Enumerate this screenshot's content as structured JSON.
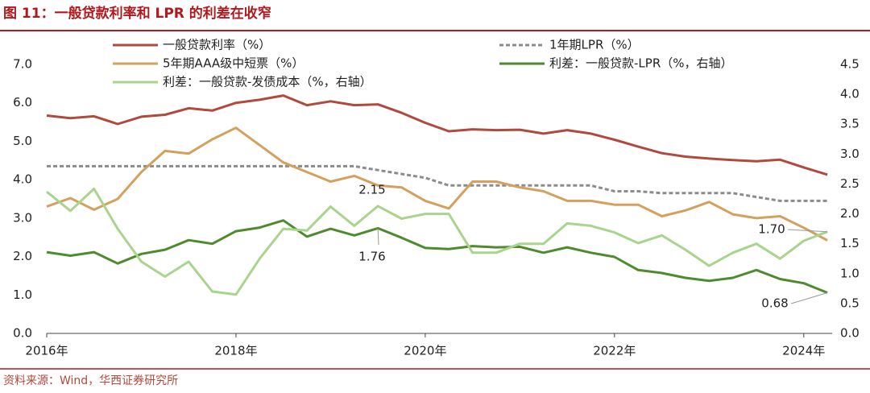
{
  "chart_data": {
    "type": "line",
    "title": "图 11：一般贷款利率和 LPR 的利差在收窄",
    "source": "资料来源：Wind，华西证券研究所",
    "x": [
      2016,
      2016.25,
      2016.5,
      2016.75,
      2017,
      2017.25,
      2017.5,
      2017.75,
      2018,
      2018.25,
      2018.5,
      2018.75,
      2019,
      2019.25,
      2019.5,
      2019.75,
      2020,
      2020.25,
      2020.5,
      2020.75,
      2021,
      2021.25,
      2021.5,
      2021.75,
      2022,
      2022.25,
      2022.5,
      2022.75,
      2023,
      2023.25,
      2023.5,
      2023.75,
      2024,
      2024.25
    ],
    "xlim": [
      2016,
      2024.3
    ],
    "xticks": [
      {
        "value": 2016,
        "label": "2016年"
      },
      {
        "value": 2018,
        "label": "2018年"
      },
      {
        "value": 2020,
        "label": "2020年"
      },
      {
        "value": 2022,
        "label": "2022年"
      },
      {
        "value": 2024,
        "label": "2024年"
      }
    ],
    "ylim": [
      0,
      7
    ],
    "yticks": [
      {
        "value": 0,
        "label": "0.0"
      },
      {
        "value": 1,
        "label": "1.0"
      },
      {
        "value": 2,
        "label": "2.0"
      },
      {
        "value": 3,
        "label": "3.0"
      },
      {
        "value": 4,
        "label": "4.0"
      },
      {
        "value": 5,
        "label": "5.0"
      },
      {
        "value": 6,
        "label": "6.0"
      },
      {
        "value": 7,
        "label": "7.0"
      }
    ],
    "y2lim": [
      0,
      4.5
    ],
    "y2ticks": [
      {
        "value": 0,
        "label": "0.0"
      },
      {
        "value": 0.5,
        "label": "0.5"
      },
      {
        "value": 1,
        "label": "1.0"
      },
      {
        "value": 1.5,
        "label": "1.5"
      },
      {
        "value": 2,
        "label": "2.0"
      },
      {
        "value": 2.5,
        "label": "2.5"
      },
      {
        "value": 3,
        "label": "3.0"
      },
      {
        "value": 3.5,
        "label": "3.5"
      },
      {
        "value": 4,
        "label": "4.0"
      },
      {
        "value": 4.5,
        "label": "4.5"
      }
    ],
    "series": [
      {
        "name": "一般贷款利率（%）",
        "color": "#b04a3c",
        "style": "solid",
        "values": [
          5.67,
          5.6,
          5.65,
          5.45,
          5.64,
          5.69,
          5.86,
          5.8,
          6.0,
          6.08,
          6.19,
          5.94,
          6.04,
          5.94,
          5.96,
          5.74,
          5.48,
          5.26,
          5.31,
          5.29,
          5.3,
          5.2,
          5.29,
          5.2,
          5.04,
          4.86,
          4.69,
          4.6,
          4.55,
          4.51,
          4.48,
          4.52,
          4.32,
          4.13
        ]
      },
      {
        "name": "1年期LPR（%）",
        "color": "#8c8c8c",
        "style": "dashed",
        "values": [
          4.35,
          4.35,
          4.35,
          4.35,
          4.35,
          4.35,
          4.35,
          4.35,
          4.35,
          4.35,
          4.35,
          4.35,
          4.35,
          4.35,
          4.25,
          4.15,
          4.05,
          3.85,
          3.85,
          3.85,
          3.85,
          3.85,
          3.85,
          3.85,
          3.7,
          3.7,
          3.65,
          3.65,
          3.65,
          3.65,
          3.55,
          3.45,
          3.45,
          3.45
        ]
      },
      {
        "name": "5年期AAA级中短票（%）",
        "color": "#d4a05e",
        "style": "solid",
        "values": [
          3.3,
          3.52,
          3.22,
          3.5,
          4.2,
          4.75,
          4.68,
          5.05,
          5.35,
          4.9,
          4.45,
          4.2,
          3.95,
          4.1,
          3.85,
          3.8,
          3.45,
          3.25,
          3.95,
          3.95,
          3.8,
          3.7,
          3.45,
          3.45,
          3.35,
          3.35,
          3.05,
          3.2,
          3.42,
          3.1,
          3.0,
          3.05,
          2.75,
          2.42
        ]
      },
      {
        "name": "利差：一般贷款-LPR（%，右轴）",
        "color": "#4e8a2e",
        "style": "solid",
        "axis": "y2",
        "values": [
          1.36,
          1.3,
          1.36,
          1.17,
          1.33,
          1.4,
          1.56,
          1.5,
          1.71,
          1.77,
          1.89,
          1.62,
          1.75,
          1.64,
          1.76,
          1.6,
          1.43,
          1.41,
          1.46,
          1.44,
          1.45,
          1.35,
          1.44,
          1.35,
          1.28,
          1.06,
          1.01,
          0.93,
          0.88,
          0.93,
          1.06,
          0.91,
          0.84,
          0.68
        ]
      },
      {
        "name": "利差：一般贷款-发债成本（%，右轴）",
        "color": "#a9d48e",
        "style": "solid",
        "axis": "y2",
        "values": [
          2.37,
          2.05,
          2.42,
          1.75,
          1.2,
          0.95,
          1.2,
          0.7,
          0.65,
          1.25,
          1.75,
          1.72,
          2.12,
          1.8,
          2.13,
          1.92,
          2.0,
          2.0,
          1.35,
          1.35,
          1.5,
          1.5,
          1.84,
          1.8,
          1.69,
          1.51,
          1.64,
          1.4,
          1.13,
          1.35,
          1.5,
          1.25,
          1.55,
          1.7
        ]
      }
    ],
    "annotations": [
      "2.15",
      "1.76",
      "1.70",
      "0.68"
    ]
  }
}
